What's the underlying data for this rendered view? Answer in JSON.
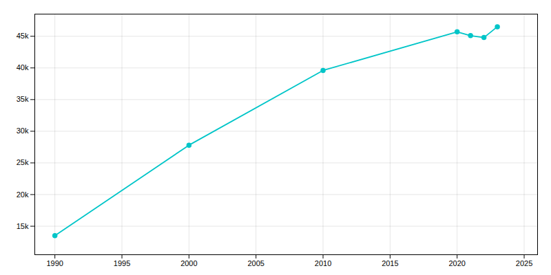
{
  "chart_data": {
    "type": "line",
    "x": [
      1990,
      2000,
      2010,
      2020,
      2021,
      2022,
      2023
    ],
    "values": [
      13500,
      27800,
      39600,
      45700,
      45100,
      44800,
      46500
    ],
    "color": "#00C5C8",
    "marker": "circle",
    "xlim": [
      1988.5,
      2026
    ],
    "ylim": [
      10500,
      48500
    ],
    "xticks": [
      1990,
      1995,
      2000,
      2005,
      2010,
      2015,
      2020,
      2025
    ],
    "yticks": [
      {
        "value": 15000,
        "label": "15k"
      },
      {
        "value": 20000,
        "label": "20k"
      },
      {
        "value": 25000,
        "label": "25k"
      },
      {
        "value": 30000,
        "label": "30k"
      },
      {
        "value": 35000,
        "label": "35k"
      },
      {
        "value": 40000,
        "label": "40k"
      },
      {
        "value": 45000,
        "label": "45k"
      }
    ],
    "grid": true
  }
}
